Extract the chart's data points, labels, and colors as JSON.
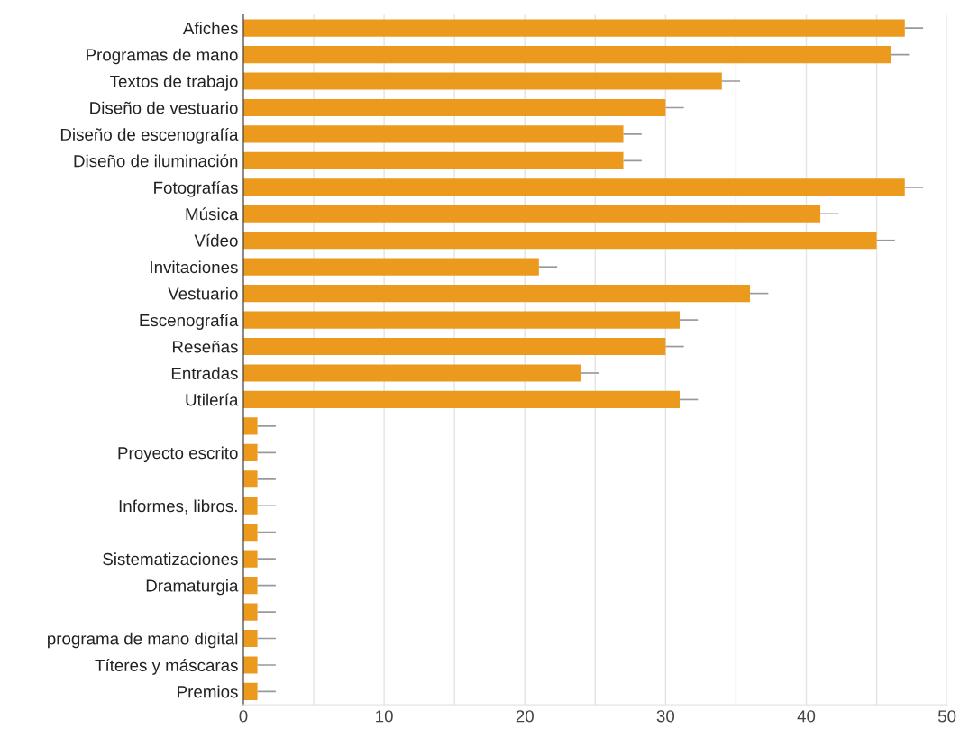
{
  "chart_data": {
    "type": "bar",
    "orientation": "horizontal",
    "categories": [
      "Afiches",
      "Programas de mano",
      "Textos de trabajo",
      "Diseño de vestuario",
      "Diseño de escenografía",
      "Diseño de iluminación",
      "Fotografías",
      "Música",
      "Vídeo",
      "Invitaciones",
      "Vestuario",
      "Escenografía",
      "Reseñas",
      "Entradas",
      "Utilería",
      null,
      "Proyecto escrito",
      null,
      "Informes, libros.",
      null,
      "Sistematizaciones",
      "Dramaturgia",
      null,
      "programa de mano digital",
      "Títeres y máscaras",
      "Premios"
    ],
    "values": [
      47,
      46,
      34,
      30,
      27,
      27,
      47,
      41,
      45,
      21,
      36,
      31,
      30,
      24,
      31,
      1,
      1,
      1,
      1,
      1,
      1,
      1,
      1,
      1,
      1,
      1
    ],
    "errors": [
      [
        47,
        48.3
      ],
      [
        46,
        47.3
      ],
      [
        34,
        35.3
      ],
      [
        30,
        31.3
      ],
      [
        27,
        28.3
      ],
      [
        27,
        28.3
      ],
      [
        47,
        48.3
      ],
      [
        41,
        42.3
      ],
      [
        45,
        46.3
      ],
      [
        21,
        22.3
      ],
      [
        36,
        37.3
      ],
      [
        31,
        32.3
      ],
      [
        30,
        31.3
      ],
      [
        24,
        25.3
      ],
      [
        31,
        32.3
      ],
      [
        1,
        2.3
      ],
      [
        1,
        2.3
      ],
      [
        1,
        2.3
      ],
      [
        1,
        2.3
      ],
      [
        1,
        2.3
      ],
      [
        1,
        2.3
      ],
      [
        1,
        2.3
      ],
      [
        1,
        2.3
      ],
      [
        1,
        2.3
      ],
      [
        1,
        2.3
      ],
      [
        1,
        2.3
      ]
    ],
    "color": "#ec9a1e",
    "xlim": [
      0,
      50
    ],
    "xticks": [
      0,
      {
        "value": 5,
        "label": null
      },
      10,
      {
        "value": 15,
        "label": null
      },
      20,
      {
        "value": 25,
        "label": null
      },
      30,
      {
        "value": 35,
        "label": null
      },
      40,
      {
        "value": 45,
        "label": null
      },
      50
    ],
    "grid": "x"
  }
}
